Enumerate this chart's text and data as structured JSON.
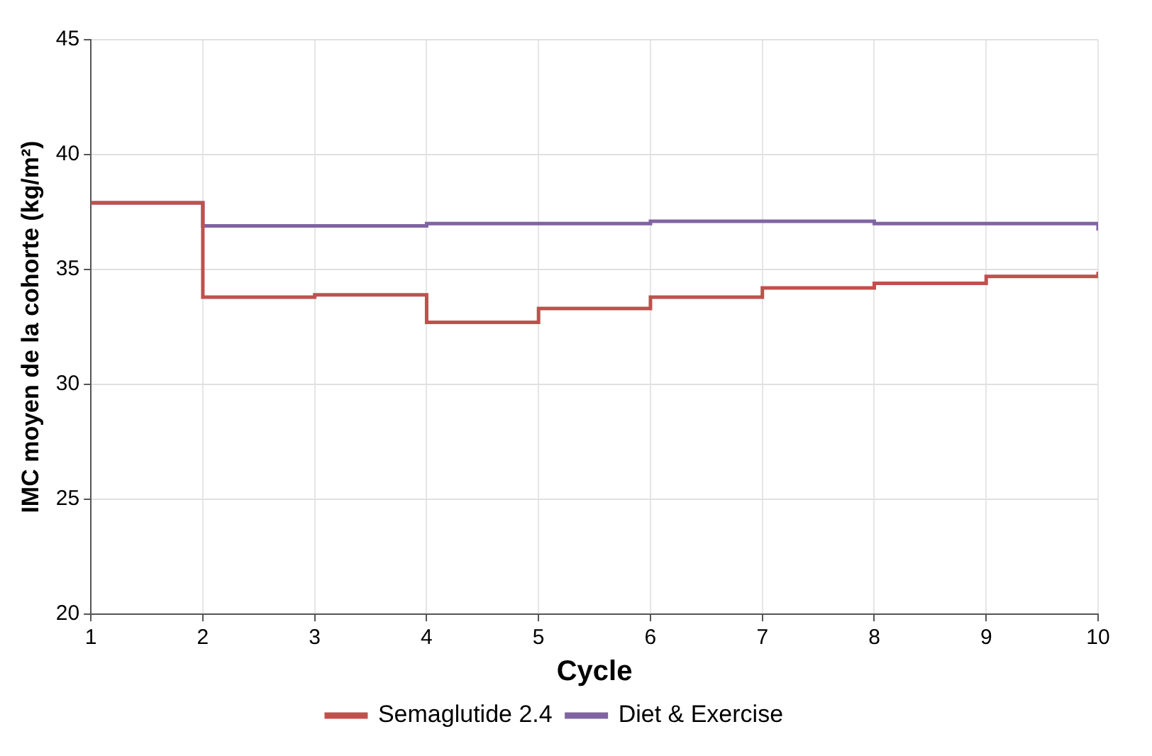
{
  "chart_data": {
    "type": "step",
    "xlabel": "Cycle",
    "ylabel": "IMC moyen de la cohorte (kg/m²)",
    "x": [
      1,
      2,
      3,
      4,
      5,
      6,
      7,
      8,
      9,
      10
    ],
    "series": [
      {
        "name": "Semaglutide 2.4",
        "color": "#c0504d",
        "values": [
          37.9,
          33.8,
          33.9,
          32.7,
          33.3,
          33.8,
          34.2,
          34.4,
          34.7,
          34.9
        ]
      },
      {
        "name": "Diet & Exercise",
        "color": "#8064a2",
        "values": [
          37.9,
          36.9,
          36.9,
          37.0,
          37.0,
          37.1,
          37.1,
          37.0,
          37.0,
          36.7
        ]
      }
    ],
    "xlim": [
      1,
      10
    ],
    "xticks": [
      1,
      2,
      3,
      4,
      5,
      6,
      7,
      8,
      9,
      10
    ],
    "ylim": [
      20,
      45
    ],
    "yticks": [
      20,
      25,
      30,
      35,
      40,
      45
    ],
    "grid": true,
    "legend": "bottom",
    "marker": "none",
    "line_style": "solid"
  }
}
